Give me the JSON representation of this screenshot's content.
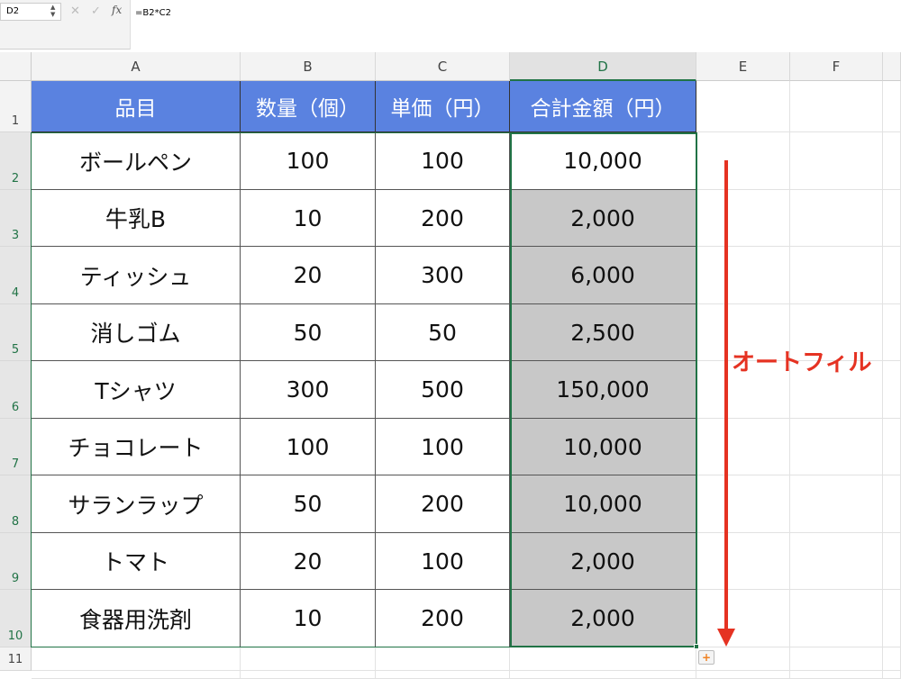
{
  "formula_bar": {
    "name_box": "D2",
    "formula": "=B2*C2",
    "fx_label": "fx",
    "cancel": "✕",
    "enter": "✓"
  },
  "columns": [
    "A",
    "B",
    "C",
    "D",
    "E",
    "F"
  ],
  "selected_column": "D",
  "rows": [
    "1",
    "2",
    "3",
    "4",
    "5",
    "6",
    "7",
    "8",
    "9",
    "10",
    "11"
  ],
  "table": {
    "headers": [
      "品目",
      "数量（個）",
      "単価（円）",
      "合計金額（円）"
    ],
    "data": [
      [
        "ボールペン",
        "100",
        "100",
        "10,000"
      ],
      [
        "牛乳B",
        "10",
        "200",
        "2,000"
      ],
      [
        "ティッシュ",
        "20",
        "300",
        "6,000"
      ],
      [
        "消しゴム",
        "50",
        "50",
        "2,500"
      ],
      [
        "Tシャツ",
        "300",
        "500",
        "150,000"
      ],
      [
        "チョコレート",
        "100",
        "100",
        "10,000"
      ],
      [
        "サランラップ",
        "50",
        "200",
        "10,000"
      ],
      [
        "トマト",
        "20",
        "100",
        "2,000"
      ],
      [
        "食器用洗剤",
        "10",
        "200",
        "2,000"
      ]
    ]
  },
  "annotation": {
    "label": "オートフィル",
    "color": "#e53222"
  },
  "colors": {
    "header_fill": "#5a82e0",
    "fill_range": "#c8c8c8",
    "selection": "#217346"
  }
}
